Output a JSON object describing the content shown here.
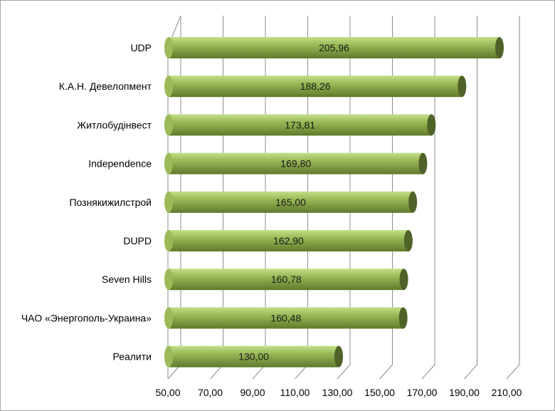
{
  "chart_data": {
    "type": "bar",
    "orientation": "horizontal",
    "style": "3d-cylinder",
    "title": "",
    "xlabel": "",
    "ylabel": "",
    "categories": [
      "UDP",
      "К.А.Н. Девелопмент",
      "Житлобудінвест",
      "Independence",
      "Познякижилстрой",
      "DUPD",
      "Seven Hills",
      "ЧАО «Энергополь-Украина»",
      "Реалити"
    ],
    "values": [
      205.96,
      188.26,
      173.81,
      169.8,
      165.0,
      162.9,
      160.78,
      160.48,
      130.0
    ],
    "value_labels": [
      "205,96",
      "188,26",
      "173,81",
      "169,80",
      "165,00",
      "162,90",
      "160,78",
      "160,48",
      "130,00"
    ],
    "xlim": [
      50,
      210
    ],
    "x_ticks": [
      50,
      70,
      90,
      110,
      130,
      150,
      170,
      190,
      210
    ],
    "x_tick_labels": [
      "50,00",
      "70,00",
      "90,00",
      "110,00",
      "130,00",
      "150,00",
      "170,00",
      "190,00",
      "210,00"
    ],
    "grid": true,
    "legend": "none",
    "colors": {
      "bar_light": "#c3e08a",
      "bar_mid": "#9bbb59",
      "bar_dark": "#5f7a2a",
      "bar_end": "#4f6228",
      "gridline": "#8c8c8c"
    }
  }
}
